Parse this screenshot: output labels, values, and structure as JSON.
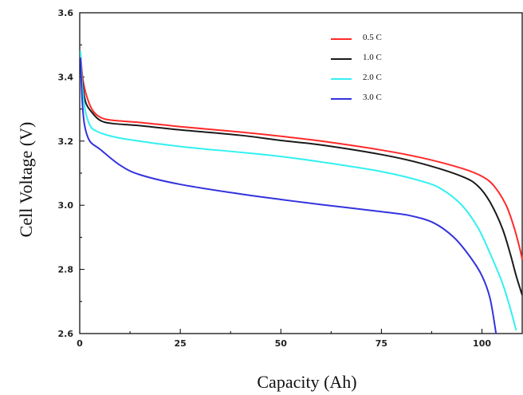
{
  "chart_data": {
    "type": "line",
    "title": "",
    "xlabel": "Capacity (Ah)",
    "ylabel": "Cell Voltage (V)",
    "xlim": [
      0,
      110
    ],
    "ylim": [
      2.6,
      3.6
    ],
    "x_ticks": [
      0,
      25,
      50,
      75,
      100
    ],
    "x_tick_labels": [
      "0",
      "25",
      "50",
      "75",
      "100"
    ],
    "y_ticks": [
      2.6,
      2.8,
      3.0,
      3.2,
      3.4,
      3.6
    ],
    "y_tick_labels": [
      "2.6",
      "2.8",
      "3.0",
      "3.2",
      "3.4",
      "3.6"
    ],
    "grid": false,
    "legend_position": "top-right",
    "series": [
      {
        "name": "0.5 C",
        "color": "#ff2a2a",
        "points": [
          [
            0.2,
            3.47
          ],
          [
            0.7,
            3.4
          ],
          [
            1.5,
            3.35
          ],
          [
            3,
            3.3
          ],
          [
            5,
            3.275
          ],
          [
            8,
            3.265
          ],
          [
            15,
            3.258
          ],
          [
            25,
            3.245
          ],
          [
            40,
            3.228
          ],
          [
            50,
            3.215
          ],
          [
            60,
            3.2
          ],
          [
            75,
            3.172
          ],
          [
            85,
            3.148
          ],
          [
            95,
            3.115
          ],
          [
            100,
            3.09
          ],
          [
            103,
            3.06
          ],
          [
            106,
            3.0
          ],
          [
            108,
            2.93
          ],
          [
            109.5,
            2.86
          ],
          [
            110,
            2.83
          ]
        ]
      },
      {
        "name": "1.0 C",
        "color": "#1a1a1a",
        "points": [
          [
            0.2,
            3.45
          ],
          [
            0.7,
            3.38
          ],
          [
            1.5,
            3.32
          ],
          [
            3,
            3.29
          ],
          [
            5,
            3.265
          ],
          [
            8,
            3.255
          ],
          [
            15,
            3.248
          ],
          [
            25,
            3.235
          ],
          [
            40,
            3.218
          ],
          [
            50,
            3.202
          ],
          [
            60,
            3.188
          ],
          [
            75,
            3.158
          ],
          [
            85,
            3.13
          ],
          [
            95,
            3.09
          ],
          [
            99,
            3.06
          ],
          [
            102,
            3.01
          ],
          [
            105,
            2.93
          ],
          [
            107,
            2.85
          ],
          [
            108.5,
            2.78
          ],
          [
            110,
            2.72
          ]
        ]
      },
      {
        "name": "2.0 C",
        "color": "#33f0f0",
        "points": [
          [
            0.2,
            3.48
          ],
          [
            0.6,
            3.38
          ],
          [
            1.3,
            3.3
          ],
          [
            2.5,
            3.25
          ],
          [
            4,
            3.232
          ],
          [
            7,
            3.218
          ],
          [
            12,
            3.205
          ],
          [
            25,
            3.183
          ],
          [
            40,
            3.165
          ],
          [
            50,
            3.152
          ],
          [
            60,
            3.135
          ],
          [
            75,
            3.105
          ],
          [
            85,
            3.075
          ],
          [
            90,
            3.05
          ],
          [
            95,
            3.0
          ],
          [
            99,
            2.93
          ],
          [
            102,
            2.85
          ],
          [
            105,
            2.76
          ],
          [
            107,
            2.68
          ],
          [
            108.5,
            2.61
          ]
        ]
      },
      {
        "name": "3.0 C",
        "color": "#3333dd",
        "points": [
          [
            0.2,
            3.46
          ],
          [
            0.6,
            3.33
          ],
          [
            1.2,
            3.25
          ],
          [
            2.5,
            3.2
          ],
          [
            5,
            3.175
          ],
          [
            10,
            3.125
          ],
          [
            15,
            3.095
          ],
          [
            25,
            3.065
          ],
          [
            40,
            3.035
          ],
          [
            50,
            3.018
          ],
          [
            60,
            3.002
          ],
          [
            75,
            2.98
          ],
          [
            82,
            2.968
          ],
          [
            88,
            2.945
          ],
          [
            93,
            2.9
          ],
          [
            97,
            2.84
          ],
          [
            100,
            2.78
          ],
          [
            102,
            2.71
          ],
          [
            103.5,
            2.6
          ]
        ]
      }
    ]
  }
}
